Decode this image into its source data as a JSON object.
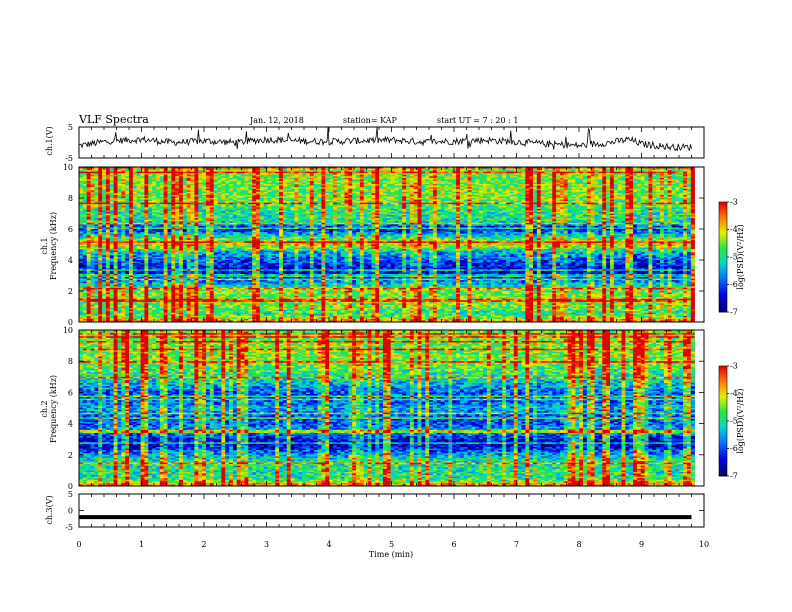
{
  "header": {
    "title": "VLF Spectra",
    "date": "Jan. 12, 2018",
    "station": "station= KAP",
    "start": "start  UT =   7 : 20 : 1"
  },
  "chart_data": [
    {
      "type": "line",
      "panel": "ch1-waveform",
      "ylabel": "ch.1(V)",
      "ylim": [
        -5,
        5
      ],
      "yticks": [
        "5",
        "-5"
      ],
      "xlim": [
        0,
        10
      ],
      "x": [
        0,
        0.5,
        1,
        1.5,
        2,
        2.5,
        3,
        3.5,
        4,
        4.5,
        5,
        5.5,
        6,
        6.5,
        7,
        7.5,
        8,
        8.5,
        8.8,
        9,
        9.5,
        9.8
      ],
      "values": [
        -1,
        0.5,
        1,
        0,
        0.5,
        0,
        1,
        0.5,
        0.3,
        0.6,
        0.8,
        0.2,
        0.4,
        0.8,
        0.2,
        -0.5,
        -1,
        0,
        1,
        -0.5,
        -1.5,
        -1.5
      ]
    },
    {
      "type": "heatmap",
      "panel": "ch1-spectrogram",
      "ylabel": "ch.1",
      "ylabel2": "Frequency (kHz)",
      "ylim": [
        0,
        10
      ],
      "yticks": [
        "0",
        "2",
        "4",
        "6",
        "8",
        "10"
      ],
      "xlim": [
        0,
        10
      ],
      "colorbar": {
        "label": "log(PSD)(V²/Hz)",
        "range": [
          -7,
          -3
        ],
        "ticks": [
          "-3",
          "-4",
          "-5",
          "-6",
          "-7"
        ]
      },
      "level_by_freq_khz": [
        [
          0,
          -3.5
        ],
        [
          0.5,
          -5
        ],
        [
          1,
          -4.5
        ],
        [
          1.5,
          -4.5
        ],
        [
          2,
          -4.5
        ],
        [
          2.5,
          -5.5
        ],
        [
          3,
          -6.5
        ],
        [
          3.5,
          -6.5
        ],
        [
          4,
          -6
        ],
        [
          4.5,
          -5.5
        ],
        [
          5,
          -4
        ],
        [
          5.5,
          -5
        ],
        [
          6,
          -6.5
        ],
        [
          6.5,
          -5
        ],
        [
          7,
          -5
        ],
        [
          8,
          -4.5
        ],
        [
          9,
          -4.5
        ],
        [
          10,
          -4.5
        ]
      ]
    },
    {
      "type": "heatmap",
      "panel": "ch2-spectrogram",
      "ylabel": "ch.2",
      "ylabel2": "Frequency (kHz)",
      "ylim": [
        0,
        10
      ],
      "yticks": [
        "0",
        "2",
        "4",
        "6",
        "8",
        "10"
      ],
      "xlim": [
        0,
        10
      ],
      "colorbar": {
        "label": "log(PSD)(V²/Hz)",
        "range": [
          -7,
          -3
        ],
        "ticks": [
          "-3",
          "-4",
          "-5",
          "-6",
          "-7"
        ]
      },
      "level_by_freq_khz": [
        [
          0,
          -3.5
        ],
        [
          0.5,
          -5
        ],
        [
          1,
          -5
        ],
        [
          1.5,
          -5
        ],
        [
          2,
          -5.5
        ],
        [
          2.5,
          -6.5
        ],
        [
          3,
          -6.5
        ],
        [
          3.5,
          -5.5
        ],
        [
          4,
          -6
        ],
        [
          4.5,
          -6
        ],
        [
          5,
          -5.5
        ],
        [
          5.5,
          -6
        ],
        [
          6,
          -6
        ],
        [
          6.5,
          -5.5
        ],
        [
          7,
          -5
        ],
        [
          8,
          -4.5
        ],
        [
          9,
          -4.5
        ],
        [
          10,
          -4.5
        ]
      ]
    },
    {
      "type": "line",
      "panel": "ch3-waveform",
      "ylabel": "ch.3(V)",
      "ylim": [
        -5,
        5
      ],
      "yticks": [
        "5",
        "0",
        "-5"
      ],
      "xlim": [
        0,
        10
      ],
      "x": [
        0,
        9.8
      ],
      "values": [
        -2,
        -2
      ]
    }
  ],
  "xaxis": {
    "label": "Time  (min)",
    "ticks": [
      "0",
      "1",
      "2",
      "3",
      "4",
      "5",
      "6",
      "7",
      "8",
      "9",
      "10"
    ]
  }
}
